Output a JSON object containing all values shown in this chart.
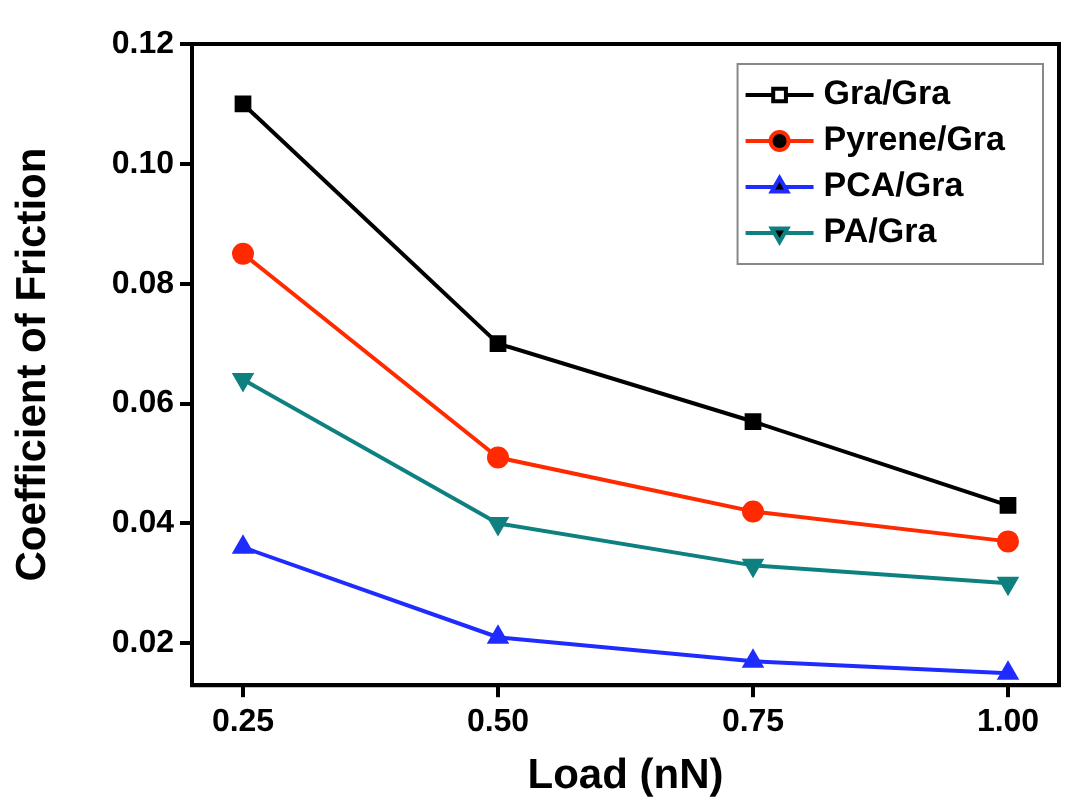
{
  "chart_data": {
    "type": "line",
    "xlabel": "Load (nN)",
    "ylabel": "Coefficient of Friction",
    "x": [
      0.25,
      0.5,
      0.75,
      1.0
    ],
    "xlim": [
      0.2,
      1.05
    ],
    "xticks": [
      {
        "value": 0.25,
        "label": "0.25"
      },
      {
        "value": 0.5,
        "label": "0.50"
      },
      {
        "value": 0.75,
        "label": "0.75"
      },
      {
        "value": 1.0,
        "label": "1.00"
      }
    ],
    "ylim": [
      0.013,
      0.12
    ],
    "yticks": [
      {
        "value": 0.02,
        "label": "0.02"
      },
      {
        "value": 0.04,
        "label": "0.04"
      },
      {
        "value": 0.06,
        "label": "0.06"
      },
      {
        "value": 0.08,
        "label": "0.08"
      },
      {
        "value": 0.1,
        "label": "0.10"
      },
      {
        "value": 0.12,
        "label": "0.12"
      }
    ],
    "grid": false,
    "legend": "top right",
    "line_style": "solid",
    "series": [
      {
        "name": "Gra/Gra",
        "color": "#000000",
        "marker": "square",
        "values": [
          0.11,
          0.07,
          0.057,
          0.043
        ]
      },
      {
        "name": "Pyrene/Gra",
        "color": "#ff2a00",
        "marker": "circle",
        "values": [
          0.085,
          0.051,
          0.042,
          0.037
        ]
      },
      {
        "name": "PCA/Gra",
        "color": "#1f2cff",
        "marker": "triangle",
        "values": [
          0.036,
          0.021,
          0.017,
          0.015
        ]
      },
      {
        "name": "PA/Gra",
        "color": "#0f8080",
        "marker": "triangle-down",
        "values": [
          0.064,
          0.04,
          0.033,
          0.03
        ]
      }
    ]
  }
}
